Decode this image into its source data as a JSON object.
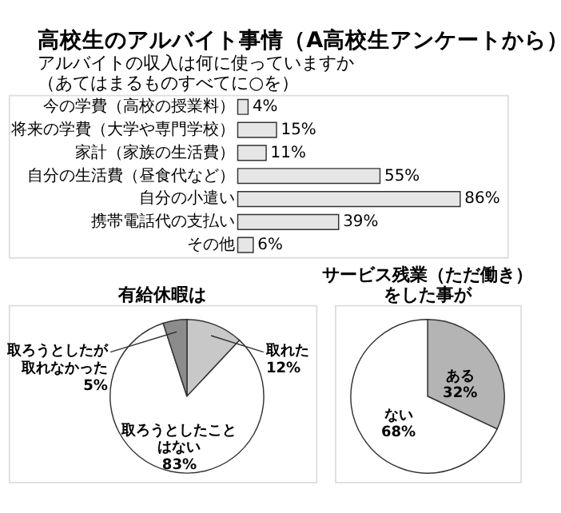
{
  "chart_data": [
    {
      "type": "bar",
      "orientation": "horizontal",
      "title": "高校生のアルバイト事情（A高校生アンケートから）",
      "subtitle": "アルバイトの収入は何に使っていますか（あてはまるものすべてに○を）",
      "categories": [
        "今の学費（高校の授業料）",
        "将来の学費（大学や専門学校）",
        "家計（家族の生活費）",
        "自分の生活費（昼食代など）",
        "自分の小遣い",
        "携帯電話代の支払い",
        "その他"
      ],
      "values": [
        4,
        15,
        11,
        55,
        86,
        39,
        6
      ],
      "value_labels": [
        "4%",
        "15%",
        "11%",
        "55%",
        "86%",
        "39%",
        "6%"
      ],
      "color": "#e6e6e6",
      "grid": false
    },
    {
      "type": "pie",
      "title": "有給休暇は",
      "categories": [
        "取れた",
        "取ろうとしたことはない",
        "取ろうとしたが取れなかった"
      ],
      "values": [
        12,
        83,
        5
      ],
      "value_labels": [
        "12%",
        "83%",
        "5%"
      ],
      "colors": [
        "#c8c8c8",
        "#ffffff",
        "#8c8c8c"
      ],
      "legend": false
    },
    {
      "type": "pie",
      "title": "サービス残業（ただ働き）をした事が",
      "categories": [
        "ある",
        "ない"
      ],
      "values": [
        32,
        68
      ],
      "value_labels": [
        "32%",
        "68%"
      ],
      "colors": [
        "#b4b4b4",
        "#ffffff"
      ],
      "legend": false
    }
  ]
}
